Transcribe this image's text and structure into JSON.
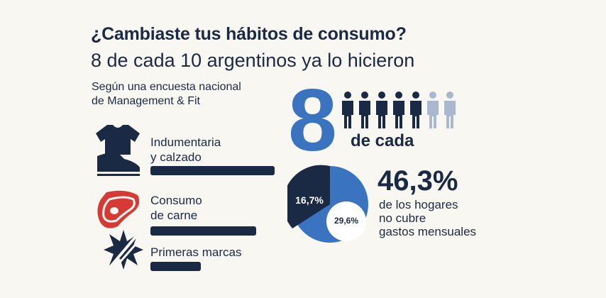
{
  "title": "¿Cambiaste tus hábitos de consumo?",
  "subtitle": "8 de cada 10 argentinos ya lo hicieron",
  "source": [
    "Según una encuesta nacional",
    "de Management & Fit"
  ],
  "categories": [
    {
      "label": [
        "Indumentaria",
        "y calzado"
      ],
      "icon": "shirt-shoe-icon",
      "bar_level": 1.0
    },
    {
      "label": [
        "Consumo",
        "de carne"
      ],
      "icon": "steak-icon",
      "bar_level": 0.85
    },
    {
      "label": [
        "Primeras marcas"
      ],
      "icon": "crossed-badge-icon",
      "bar_level": 0.41
    }
  ],
  "ratio": {
    "number": "8",
    "text": "de cada",
    "highlighted": 8,
    "total": 10
  },
  "pie": {
    "labels": [
      "16,7%",
      "29,6%"
    ]
  },
  "stat": {
    "value": "46,3%",
    "desc": [
      "de los hogares",
      "no cubre",
      "gastos mensuales"
    ]
  },
  "colors": {
    "navy": "#1b2a44",
    "blue": "#3a73c0",
    "light": "#a9b8cf",
    "red": "#d63a35",
    "bg": "#f8f7f2"
  }
}
